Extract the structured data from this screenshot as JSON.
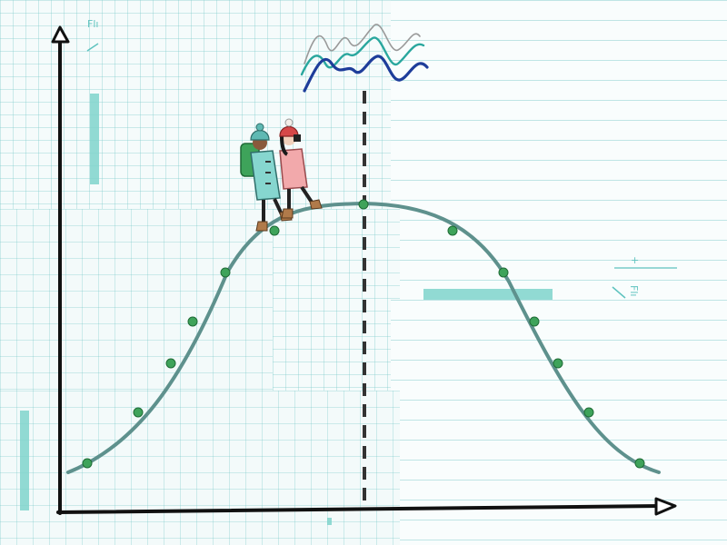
{
  "notes": {
    "top_left": "Flı",
    "right": "Flı",
    "right_plus": "+"
  },
  "colors": {
    "curve": "#5e918d",
    "curve_dot": "#3ea35a",
    "axis": "#111111",
    "accent_teal": "#7fd3cb",
    "wave_gray": "#9a9a9a",
    "wave_teal": "#2aa79e",
    "wave_navy": "#1e3d9a",
    "hiker1_coat": "#86d6cf",
    "hiker2_coat": "#f2a9ab"
  },
  "icons": [
    "hikers-illustration",
    "wave-trio-icon"
  ]
}
